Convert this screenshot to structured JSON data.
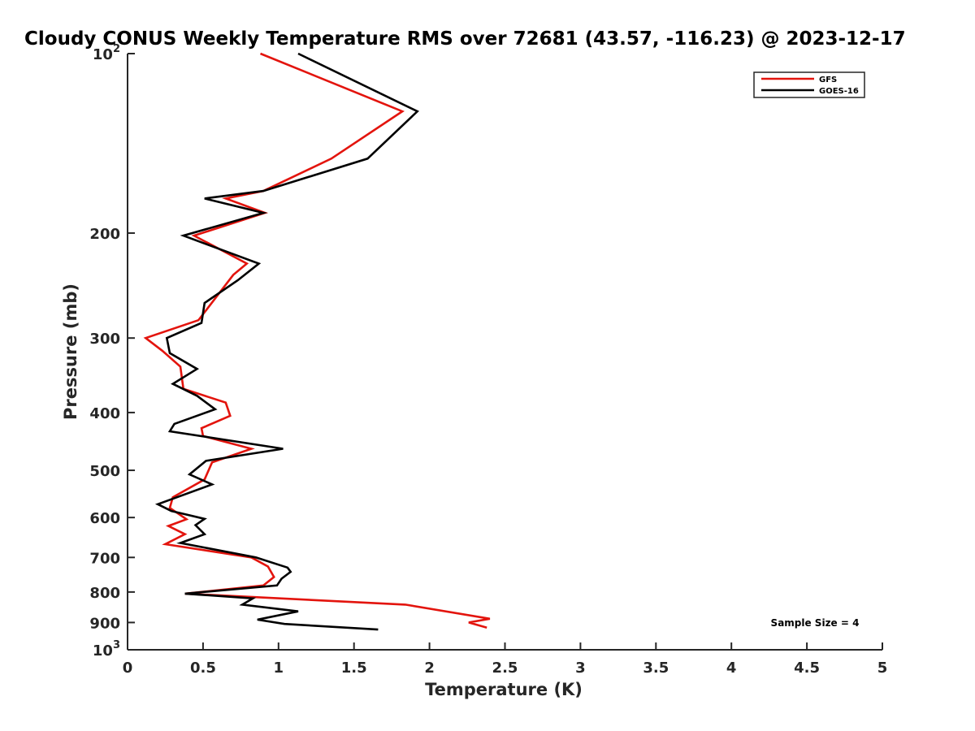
{
  "chart_data": {
    "type": "line",
    "title": "Cloudy CONUS Weekly Temperature RMS over 72681 (43.57, -116.23) @ 2023-12-17",
    "xlabel": "Temperature (K)",
    "ylabel": "Pressure (mb)",
    "xlim": [
      0,
      5
    ],
    "ylim": [
      100,
      1000
    ],
    "y_scale": "log",
    "y_direction": "reversed",
    "x_ticks": [
      "0",
      "0.5",
      "1",
      "1.5",
      "2",
      "2.5",
      "3",
      "3.5",
      "4",
      "4.5",
      "5"
    ],
    "y_ticks": [
      {
        "value": 100,
        "base": "10",
        "exp": "2"
      },
      {
        "value": 200,
        "label": "200"
      },
      {
        "value": 300,
        "label": "300"
      },
      {
        "value": 400,
        "label": "400"
      },
      {
        "value": 500,
        "label": "500"
      },
      {
        "value": 600,
        "label": "600"
      },
      {
        "value": 700,
        "label": "700"
      },
      {
        "value": 800,
        "label": "800"
      },
      {
        "value": 900,
        "label": "900"
      },
      {
        "value": 1000,
        "base": "10",
        "exp": "3"
      }
    ],
    "grid": false,
    "legend_position": "top-right",
    "annotation": "Sample Size = 4",
    "series": [
      {
        "name": "GFS",
        "color": "#e3140d",
        "points": [
          [
            0.88,
            100
          ],
          [
            1.82,
            125
          ],
          [
            1.35,
            150
          ],
          [
            0.9,
            170
          ],
          [
            0.65,
            175
          ],
          [
            0.91,
            185
          ],
          [
            0.44,
            202
          ],
          [
            0.79,
            225
          ],
          [
            0.7,
            235
          ],
          [
            0.47,
            280
          ],
          [
            0.12,
            300
          ],
          [
            0.23,
            315
          ],
          [
            0.35,
            335
          ],
          [
            0.37,
            365
          ],
          [
            0.65,
            385
          ],
          [
            0.68,
            405
          ],
          [
            0.49,
            425
          ],
          [
            0.5,
            438
          ],
          [
            0.82,
            460
          ],
          [
            0.56,
            485
          ],
          [
            0.51,
            518
          ],
          [
            0.3,
            555
          ],
          [
            0.28,
            578
          ],
          [
            0.39,
            604
          ],
          [
            0.27,
            620
          ],
          [
            0.38,
            640
          ],
          [
            0.25,
            665
          ],
          [
            0.82,
            700
          ],
          [
            0.93,
            725
          ],
          [
            0.97,
            755
          ],
          [
            0.9,
            780
          ],
          [
            0.38,
            805
          ],
          [
            1.84,
            840
          ],
          [
            2.4,
            887
          ],
          [
            2.26,
            900
          ],
          [
            2.38,
            918
          ]
        ]
      },
      {
        "name": "GOES-16",
        "color": "#000000",
        "points": [
          [
            1.13,
            100
          ],
          [
            1.92,
            125
          ],
          [
            1.59,
            150
          ],
          [
            0.9,
            170
          ],
          [
            0.51,
            175
          ],
          [
            0.9,
            185
          ],
          [
            0.37,
            202
          ],
          [
            0.87,
            225
          ],
          [
            0.73,
            240
          ],
          [
            0.51,
            262
          ],
          [
            0.49,
            283
          ],
          [
            0.26,
            300
          ],
          [
            0.28,
            318
          ],
          [
            0.46,
            338
          ],
          [
            0.3,
            358
          ],
          [
            0.46,
            375
          ],
          [
            0.58,
            395
          ],
          [
            0.31,
            418
          ],
          [
            0.28,
            430
          ],
          [
            1.03,
            460
          ],
          [
            0.52,
            482
          ],
          [
            0.41,
            508
          ],
          [
            0.56,
            528
          ],
          [
            0.2,
            570
          ],
          [
            0.29,
            585
          ],
          [
            0.51,
            603
          ],
          [
            0.45,
            618
          ],
          [
            0.51,
            640
          ],
          [
            0.35,
            662
          ],
          [
            0.85,
            700
          ],
          [
            1.06,
            728
          ],
          [
            1.08,
            740
          ],
          [
            1.02,
            760
          ],
          [
            0.99,
            780
          ],
          [
            0.38,
            805
          ],
          [
            0.83,
            820
          ],
          [
            0.76,
            840
          ],
          [
            1.13,
            862
          ],
          [
            0.86,
            890
          ],
          [
            1.04,
            905
          ],
          [
            1.66,
            925
          ]
        ]
      }
    ]
  }
}
